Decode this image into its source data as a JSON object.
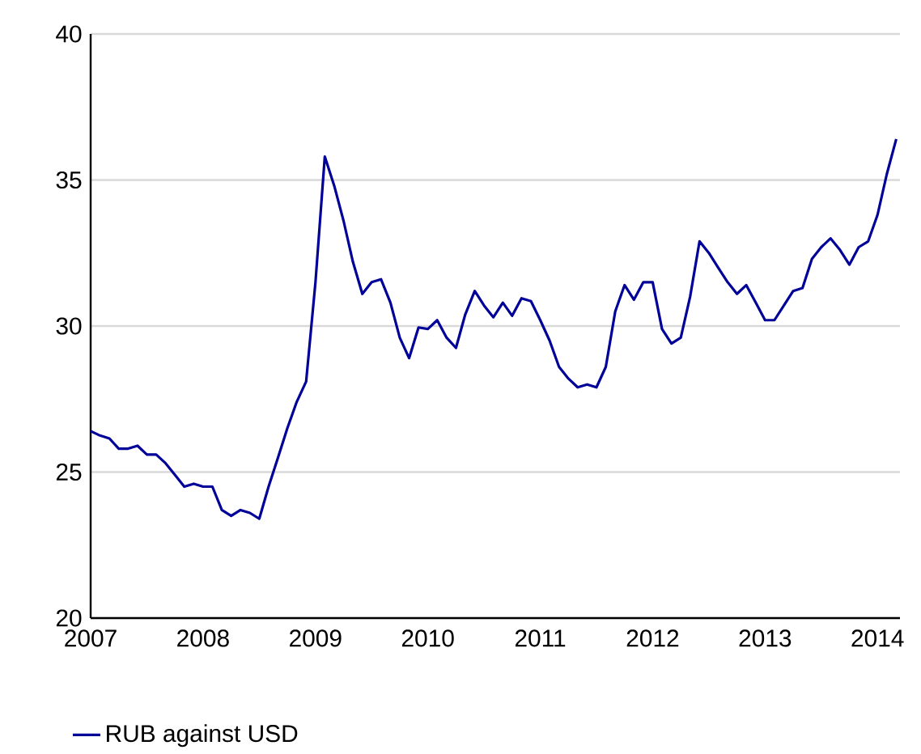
{
  "chart_data": {
    "type": "line",
    "x": [
      2007.0,
      2007.083,
      2007.167,
      2007.25,
      2007.333,
      2007.417,
      2007.5,
      2007.583,
      2007.667,
      2007.75,
      2007.833,
      2007.917,
      2008.0,
      2008.083,
      2008.167,
      2008.25,
      2008.333,
      2008.417,
      2008.5,
      2008.583,
      2008.667,
      2008.75,
      2008.833,
      2008.917,
      2009.0,
      2009.083,
      2009.167,
      2009.25,
      2009.333,
      2009.417,
      2009.5,
      2009.583,
      2009.667,
      2009.75,
      2009.833,
      2009.917,
      2010.0,
      2010.083,
      2010.167,
      2010.25,
      2010.333,
      2010.417,
      2010.5,
      2010.583,
      2010.667,
      2010.75,
      2010.833,
      2010.917,
      2011.0,
      2011.083,
      2011.167,
      2011.25,
      2011.333,
      2011.417,
      2011.5,
      2011.583,
      2011.667,
      2011.75,
      2011.833,
      2011.917,
      2012.0,
      2012.083,
      2012.167,
      2012.25,
      2012.333,
      2012.417,
      2012.5,
      2012.583,
      2012.667,
      2012.75,
      2012.833,
      2012.917,
      2013.0,
      2013.083,
      2013.167,
      2013.25,
      2013.333,
      2013.417,
      2013.5,
      2013.583,
      2013.667,
      2013.75,
      2013.833,
      2013.917,
      2014.0,
      2014.083,
      2014.167
    ],
    "series": [
      {
        "name": "RUB against USD",
        "color": "#000099",
        "values": [
          26.4,
          26.25,
          26.15,
          25.8,
          25.8,
          25.9,
          25.6,
          25.6,
          25.3,
          24.9,
          24.5,
          24.6,
          24.5,
          24.5,
          23.7,
          23.5,
          23.7,
          23.6,
          23.4,
          24.5,
          25.5,
          26.5,
          27.4,
          28.1,
          31.5,
          35.8,
          34.8,
          33.6,
          32.2,
          31.1,
          31.5,
          31.6,
          30.8,
          29.6,
          28.9,
          29.95,
          29.9,
          30.2,
          29.6,
          29.25,
          30.4,
          31.2,
          30.7,
          30.3,
          30.8,
          30.35,
          30.95,
          30.85,
          30.2,
          29.5,
          28.6,
          28.2,
          27.9,
          28.0,
          27.9,
          28.6,
          30.5,
          31.4,
          30.9,
          31.5,
          31.5,
          29.9,
          29.4,
          29.6,
          31.0,
          32.9,
          32.5,
          32.0,
          31.5,
          31.1,
          31.4,
          30.8,
          30.2,
          30.2,
          30.7,
          31.2,
          31.3,
          32.3,
          32.7,
          33.0,
          32.6,
          32.1,
          32.7,
          32.9,
          33.8,
          35.2,
          36.4
        ]
      }
    ],
    "xlim": [
      2007,
      2014.2
    ],
    "xticks": [
      2007,
      2008,
      2009,
      2010,
      2011,
      2012,
      2013,
      2014
    ],
    "ylim": [
      20,
      40
    ],
    "yticks": [
      20,
      25,
      30,
      35,
      40
    ],
    "grid": "y",
    "legend": "bottom"
  }
}
